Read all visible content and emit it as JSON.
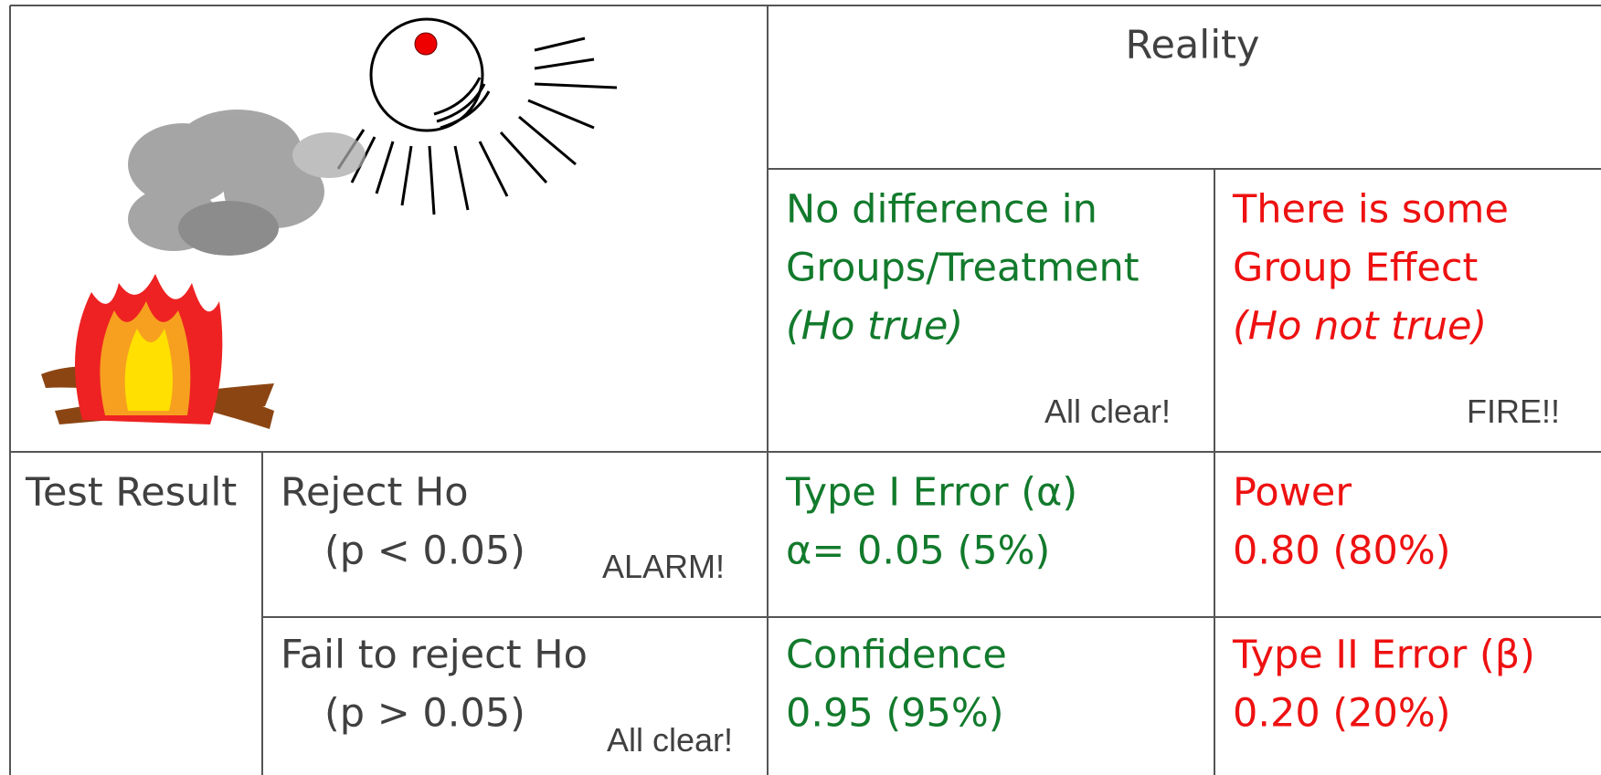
{
  "table": {
    "header": "Reality",
    "columns": [
      {
        "lines": [
          "No difference in",
          "Groups/Treatment"
        ],
        "note": "(Ho true)",
        "tag": "All clear!"
      },
      {
        "lines": [
          "There is some",
          "Group Effect"
        ],
        "note": "(Ho not true)",
        "tag": "FIRE!!"
      }
    ],
    "row_header": "Test Result",
    "rows": [
      {
        "label": "Reject Ho",
        "condition": "(p < 0.05)",
        "tag": "ALARM!",
        "cells": [
          [
            "Type I Error (α)",
            "α= 0.05 (5%)"
          ],
          [
            "Power",
            "0.80 (80%)"
          ]
        ]
      },
      {
        "label": "Fail to reject Ho",
        "condition": "(p > 0.05)",
        "tag": "All clear!",
        "cells": [
          [
            "Confidence",
            "0.95 (95%)"
          ],
          [
            "Type II Error (β)",
            "0.20 (20%)"
          ]
        ]
      }
    ]
  }
}
